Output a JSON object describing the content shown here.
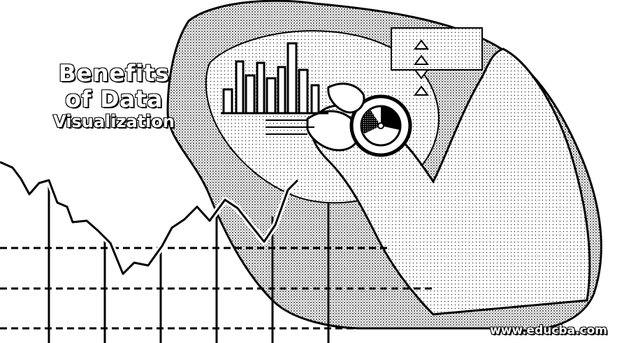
{
  "title": {
    "line1": "Benefits",
    "line2": "of Data",
    "line3": "Visualization"
  },
  "watermark": "www.educba.com",
  "colors": {
    "ink": "#000000",
    "paper": "#ffffff"
  },
  "icons": [
    "bar-chart-graphic",
    "line-chart-graphic",
    "hand-holding-pie-chart",
    "arrow-up-icon",
    "arrow-down-icon"
  ]
}
